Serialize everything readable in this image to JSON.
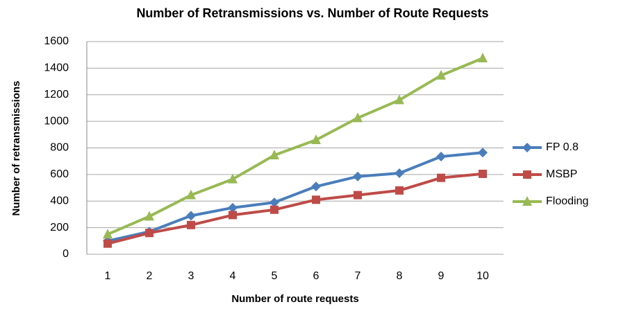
{
  "chart_data": {
    "type": "line",
    "title": "Number of Retransmissions vs. Number of Route Requests",
    "x_label": "Number of route requests",
    "y_label": "Number of retransmissions",
    "categories": [
      "1",
      "2",
      "3",
      "4",
      "5",
      "6",
      "7",
      "8",
      "9",
      "10"
    ],
    "series": [
      {
        "name": "FP 0.8",
        "color": "#4a7ebb",
        "marker": "diamond",
        "values": [
          100,
          170,
          290,
          350,
          390,
          510,
          585,
          610,
          735,
          765
        ]
      },
      {
        "name": "MSBP",
        "color": "#be4b48",
        "marker": "square",
        "values": [
          80,
          160,
          220,
          295,
          335,
          410,
          445,
          480,
          575,
          605
        ]
      },
      {
        "name": "Flooding",
        "color": "#98b954",
        "marker": "triangle",
        "values": [
          150,
          285,
          445,
          565,
          745,
          860,
          1025,
          1160,
          1345,
          1475
        ]
      }
    ],
    "ylim": [
      0,
      1600
    ],
    "yticks": [
      0,
      200,
      400,
      600,
      800,
      1000,
      1200,
      1400,
      1600
    ],
    "grid": true,
    "legend": "right"
  }
}
